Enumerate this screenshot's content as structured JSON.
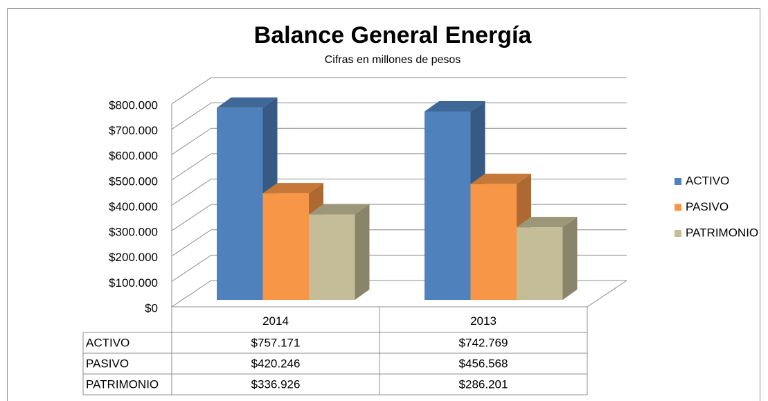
{
  "chart_data": {
    "type": "bar3d",
    "title": "Balance General Energía",
    "subtitle": "Cifras en millones de pesos",
    "categories": [
      "2014",
      "2013"
    ],
    "series": [
      {
        "name": "ACTIVO",
        "color": "#4f81bd",
        "values": [
          757171,
          742769
        ],
        "value_labels": [
          "$757.171",
          "$742.769"
        ]
      },
      {
        "name": "PASIVO",
        "color": "#f79646",
        "values": [
          420246,
          456568
        ],
        "value_labels": [
          "$420.246",
          "$456.568"
        ]
      },
      {
        "name": "PATRIMONIO",
        "color": "#c4bd97",
        "values": [
          336926,
          286201
        ],
        "value_labels": [
          "$336.926",
          "$286.201"
        ]
      }
    ],
    "ylim": [
      0,
      800000
    ],
    "yticks": [
      {
        "value": 0,
        "label": "$0"
      },
      {
        "value": 100000,
        "label": "$100.000"
      },
      {
        "value": 200000,
        "label": "$200.000"
      },
      {
        "value": 300000,
        "label": "$300.000"
      },
      {
        "value": 400000,
        "label": "$400.000"
      },
      {
        "value": 500000,
        "label": "$500.000"
      },
      {
        "value": 600000,
        "label": "$600.000"
      },
      {
        "value": 700000,
        "label": "$700.000"
      },
      {
        "value": 800000,
        "label": "$800.000"
      }
    ],
    "grid": true,
    "legend": "right",
    "data_table": true
  }
}
